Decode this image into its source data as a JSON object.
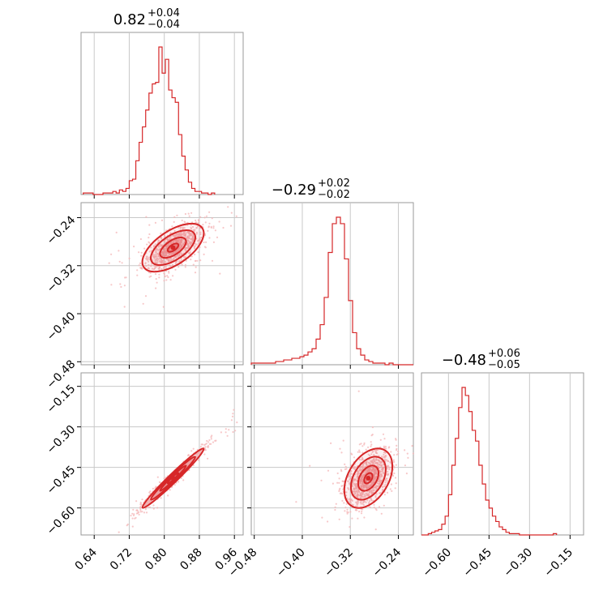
{
  "chart_data": {
    "type": "corner",
    "color": "#d62728",
    "point_color": "#f4b6b7",
    "grid": true,
    "parameters": [
      {
        "id": "p1",
        "title": {
          "median": "0.82",
          "plus": "+0.04",
          "minus": "−0.04"
        },
        "range": [
          0.61,
          0.98
        ],
        "ticks": [
          "0.64",
          "0.72",
          "0.80",
          "0.88",
          "0.96"
        ],
        "tick_values": [
          0.64,
          0.72,
          0.8,
          0.88,
          0.96
        ],
        "mean": 0.82,
        "sd": 0.035
      },
      {
        "id": "p2",
        "title": {
          "median": "−0.29",
          "plus": "+0.02",
          "minus": "−0.02"
        },
        "range": [
          -0.485,
          -0.215
        ],
        "ticks": [
          "−0.48",
          "−0.40",
          "−0.32",
          "−0.24"
        ],
        "tick_values": [
          -0.48,
          -0.4,
          -0.32,
          -0.24
        ],
        "mean": -0.29,
        "sd": 0.02
      },
      {
        "id": "p3",
        "title": {
          "median": "−0.48",
          "plus": "+0.06",
          "minus": "−0.05"
        },
        "range": [
          -0.7,
          -0.1
        ],
        "ticks": [
          "−0.60",
          "−0.45",
          "−0.30",
          "−0.15"
        ],
        "tick_values": [
          -0.6,
          -0.45,
          -0.3,
          -0.15
        ],
        "mean": -0.49,
        "sd": 0.055
      }
    ],
    "panels": {
      "hist_p1": {
        "x0": 0.615,
        "bin": 0.0075,
        "counts": [
          1,
          1,
          1,
          0,
          0,
          0,
          1,
          1,
          1,
          2,
          1,
          3,
          2,
          4,
          9,
          10,
          22,
          34,
          44,
          55,
          66,
          72,
          73,
          96,
          79,
          88,
          68,
          63,
          60,
          39,
          25,
          16,
          8,
          4,
          2,
          2,
          1,
          1,
          0,
          1
        ]
      },
      "hist_p2": {
        "x0": -0.485,
        "bin": 0.00675,
        "counts": [
          1,
          1,
          1,
          1,
          1,
          1,
          2,
          2,
          3,
          3,
          4,
          4,
          5,
          6,
          8,
          10,
          16,
          25,
          42,
          70,
          88,
          92,
          88,
          66,
          40,
          20,
          10,
          6,
          3,
          2,
          1,
          1,
          1,
          0,
          1,
          0,
          0,
          0,
          0,
          0
        ]
      },
      "hist_p3": {
        "x0": -0.7,
        "bin": 0.0125,
        "counts": [
          0,
          0,
          1,
          2,
          3,
          4,
          8,
          14,
          30,
          52,
          72,
          95,
          110,
          104,
          92,
          78,
          70,
          52,
          38,
          26,
          20,
          14,
          10,
          6,
          4,
          2,
          1,
          1,
          1,
          0,
          0,
          0,
          0,
          0,
          0,
          0,
          0,
          0,
          0,
          1
        ]
      },
      "scatter_p1_p2": {
        "rho": 0.6
      },
      "scatter_p1_p3": {
        "rho": 0.98
      },
      "scatter_p2_p3": {
        "rho": 0.4
      }
    }
  }
}
